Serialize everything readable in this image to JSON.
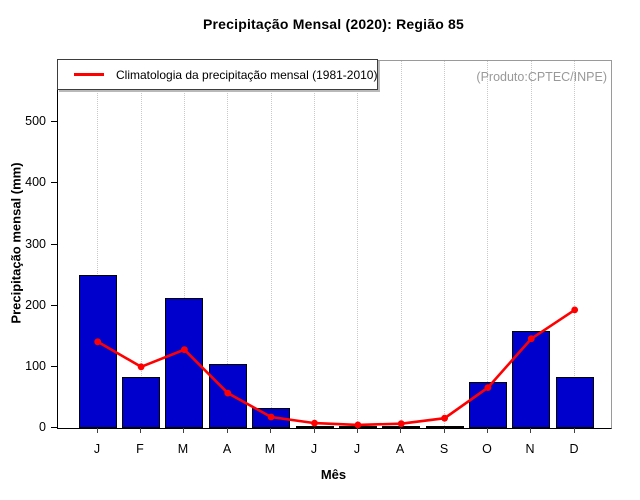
{
  "legend": {
    "label": "Climatologia da precipitação mensal (1981-2010)",
    "line_color": "#FF0000"
  },
  "annotation": {
    "text": "(Produto:CPTEC/INPE)",
    "color": "#999999"
  },
  "colors": {
    "bar_fill": "#0000CD",
    "bar_border": "#000000",
    "line": "#FF0000",
    "grid": "#C9C9C9",
    "box_border": "#9A9A9A",
    "axis": "#000000"
  },
  "chart_data": {
    "type": "bar",
    "title": "Precipitação Mensal (2020): Região 85",
    "xlabel": "Mês",
    "ylabel": "Precipitação mensal (mm)",
    "categories": [
      "J",
      "F",
      "M",
      "A",
      "M",
      "J",
      "J",
      "A",
      "S",
      "O",
      "N",
      "D"
    ],
    "series": [
      {
        "name": "Precipitação mensal (2020)",
        "type": "bar",
        "color": "#0000CD",
        "values": [
          250,
          84,
          213,
          104,
          33,
          2,
          1,
          1,
          4,
          76,
          158,
          83
        ]
      },
      {
        "name": "Climatologia da precipitação mensal (1981-2010)",
        "type": "line",
        "color": "#FF0000",
        "values": [
          141,
          100,
          128,
          57,
          18,
          8,
          5,
          7,
          16,
          66,
          146,
          193
        ]
      }
    ],
    "ylim": [
      0,
      600
    ],
    "yticks": [
      0,
      100,
      200,
      300,
      400,
      500
    ],
    "grid": "vertical dotted",
    "legend_position": "top-left"
  }
}
